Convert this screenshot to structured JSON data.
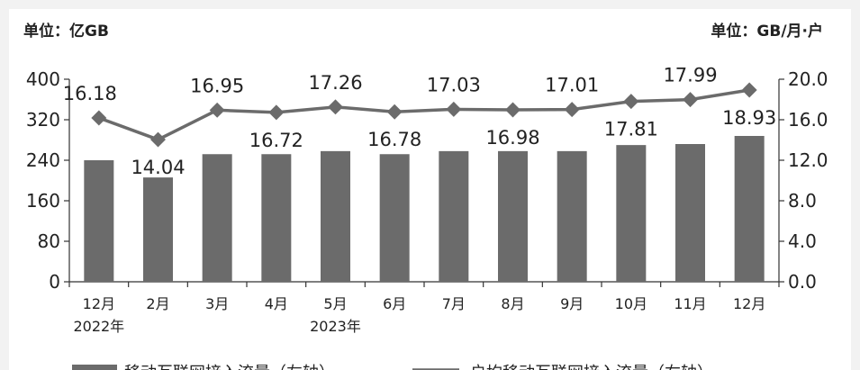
{
  "chart_data": {
    "type": "bar",
    "left_unit": "单位：亿GB",
    "right_unit": "单位：GB/月·户",
    "categories": [
      "12月",
      "2月",
      "3月",
      "4月",
      "5月",
      "6月",
      "7月",
      "8月",
      "9月",
      "10月",
      "11月",
      "12月"
    ],
    "year_labels": [
      {
        "category_index": 0,
        "text": "2022年"
      },
      {
        "category_index": 4,
        "text": "2023年"
      }
    ],
    "series": [
      {
        "name": "移动互联网接入流量（左轴）",
        "type": "bar",
        "axis": "left",
        "color": "#6b6b6b",
        "values": [
          240,
          206,
          252,
          252,
          258,
          252,
          258,
          258,
          258,
          270,
          272,
          288
        ]
      },
      {
        "name": "户均移动互联网接入流量（右轴）",
        "type": "line",
        "axis": "right",
        "color": "#6b6b6b",
        "values": [
          16.18,
          14.04,
          16.95,
          16.72,
          17.26,
          16.78,
          17.03,
          16.98,
          17.01,
          17.81,
          17.99,
          18.93
        ],
        "labels": [
          "16.18",
          "14.04",
          "16.95",
          "16.72",
          "17.26",
          "16.78",
          "17.03",
          "16.98",
          "17.01",
          "17.81",
          "17.99",
          "18.93"
        ]
      }
    ],
    "left_axis": {
      "ylim": [
        0,
        400
      ],
      "ticks": [
        "0",
        "80",
        "160",
        "240",
        "320",
        "400"
      ]
    },
    "right_axis": {
      "ylim": [
        0,
        20
      ],
      "ticks": [
        "0.0",
        "4.0",
        "8.0",
        "12.0",
        "16.0",
        "20.0"
      ]
    },
    "grid": false,
    "legend_position": "bottom"
  }
}
